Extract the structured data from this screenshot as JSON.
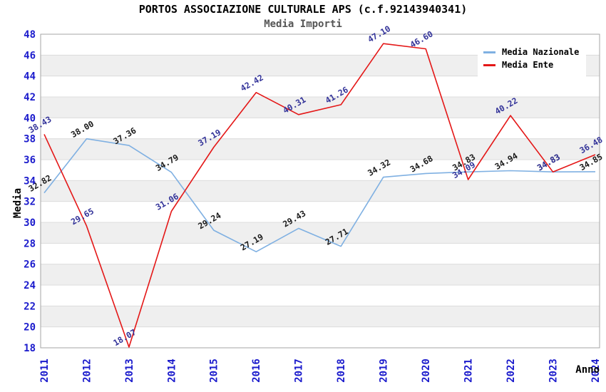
{
  "chart_data": {
    "type": "line",
    "title": "PORTOS ASSOCIAZIONE CULTURALE APS (c.f.92143940341)",
    "subtitle": "Media Importi",
    "xlabel": "Anno",
    "ylabel": "Media",
    "x": [
      "2011",
      "2012",
      "2013",
      "2014",
      "2015",
      "2016",
      "2017",
      "2018",
      "2019",
      "2020",
      "2021",
      "2022",
      "2023",
      "2024"
    ],
    "series": [
      {
        "name": "Media Nazionale",
        "color": "#7fb0e2",
        "label_color": "#1a1a1a",
        "values": [
          32.82,
          38.0,
          37.36,
          34.79,
          29.24,
          27.19,
          29.43,
          27.71,
          34.32,
          34.68,
          34.83,
          34.94,
          34.83,
          34.85
        ]
      },
      {
        "name": "Media Ente",
        "color": "#e41717",
        "label_color": "#333399",
        "values": [
          38.43,
          29.65,
          18.07,
          31.06,
          37.19,
          42.42,
          40.31,
          41.26,
          47.1,
          46.6,
          34.09,
          40.22,
          34.83,
          36.48
        ]
      }
    ],
    "ylim": [
      18,
      48
    ],
    "ytick_step": 2,
    "grid": true,
    "band_stripes": true,
    "legend_position": "top-right",
    "value_label_decimals": 2,
    "appearance": {
      "tick_label_color": "#1a1acc",
      "band_color": "#efefef",
      "grid_color": "#dcdcdc",
      "border_color": "#a6a6a6",
      "axis_title_color": "#000000",
      "subtitle_color": "#555555"
    }
  }
}
